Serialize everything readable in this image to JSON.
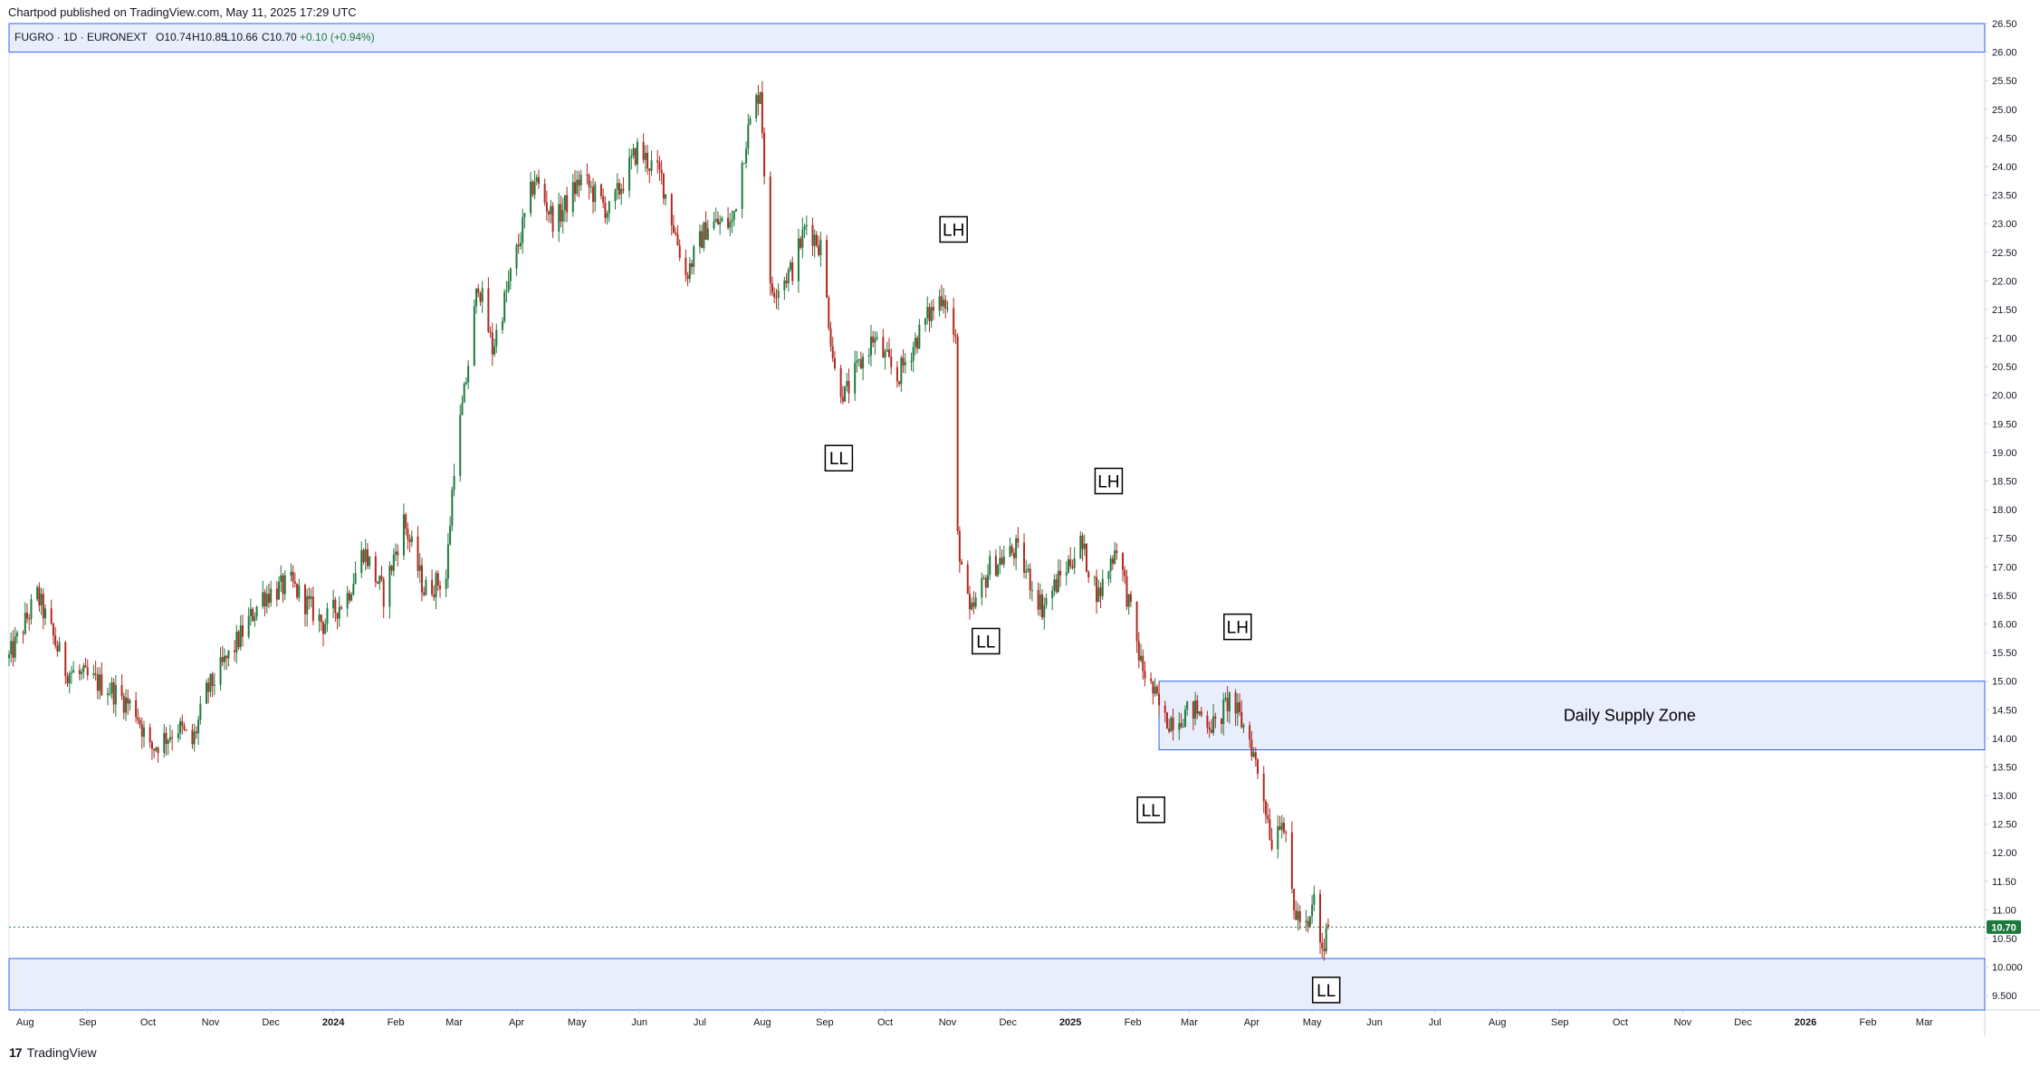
{
  "header": {
    "published_by": "Chartpod published on TradingView.com, May 11, 2025 17:29 UTC"
  },
  "footer": {
    "brand_logo": "17",
    "brand_name": "TradingView"
  },
  "colors": {
    "up": "#1e7a3c",
    "down": "#b0281f",
    "zone_fill": "#e9eefc",
    "zone_border": "#2962ff",
    "price_tag": "#1e7a3c",
    "axis_text": "#131722",
    "border": "#d1d4dc"
  },
  "chart_data": {
    "type": "candlestick",
    "symbol_legend": {
      "symbol": "FUGRO · 1D · EURONEXT",
      "open": "O10.74",
      "high": "H10.85",
      "low": "L10.66",
      "close": "C10.70",
      "change": "+0.10 (+0.94%)"
    },
    "y_axis": {
      "range": [
        9.25,
        26.5
      ],
      "tick_labels": [
        "26.50",
        "26.00",
        "25.50",
        "25.00",
        "24.50",
        "24.00",
        "23.50",
        "23.00",
        "22.50",
        "22.00",
        "21.50",
        "21.00",
        "20.50",
        "20.00",
        "19.50",
        "19.00",
        "18.50",
        "18.00",
        "17.50",
        "17.00",
        "16.50",
        "16.00",
        "15.50",
        "15.00",
        "14.50",
        "14.00",
        "13.50",
        "13.00",
        "12.50",
        "12.00",
        "11.50",
        "11.00",
        "10.50",
        "10.000",
        "9.500"
      ],
      "current_price_label": "10.70",
      "current_price": 10.7
    },
    "x_axis": {
      "range": [
        "2023-07-24",
        "2026-03-31"
      ],
      "tick_labels": [
        "Aug",
        "Sep",
        "Oct",
        "Nov",
        "Dec",
        "2024",
        "Feb",
        "Mar",
        "Apr",
        "May",
        "Jun",
        "Jul",
        "Aug",
        "Sep",
        "Oct",
        "Nov",
        "Dec",
        "2025",
        "Feb",
        "Mar",
        "Apr",
        "May",
        "Jun",
        "Jul",
        "Aug",
        "Sep",
        "Oct",
        "Nov",
        "Dec",
        "2026",
        "Feb",
        "Mar"
      ],
      "tick_dates": [
        "2023-08-01",
        "2023-09-01",
        "2023-10-01",
        "2023-11-01",
        "2023-12-01",
        "2024-01-01",
        "2024-02-01",
        "2024-03-01",
        "2024-04-01",
        "2024-05-01",
        "2024-06-01",
        "2024-07-01",
        "2024-08-01",
        "2024-09-01",
        "2024-10-01",
        "2024-11-01",
        "2024-12-01",
        "2025-01-01",
        "2025-02-01",
        "2025-03-01",
        "2025-04-01",
        "2025-05-01",
        "2025-06-01",
        "2025-07-01",
        "2025-08-01",
        "2025-09-01",
        "2025-10-01",
        "2025-11-01",
        "2025-12-01",
        "2026-01-01",
        "2026-02-01",
        "2026-03-01"
      ]
    },
    "price_path": [
      [
        "2023-07-24",
        15.4
      ],
      [
        "2023-08-07",
        16.5
      ],
      [
        "2023-08-21",
        15.2
      ],
      [
        "2023-09-11",
        14.9
      ],
      [
        "2023-09-25",
        14.5
      ],
      [
        "2023-10-02",
        13.8
      ],
      [
        "2023-10-16",
        14.2
      ],
      [
        "2023-10-23",
        13.9
      ],
      [
        "2023-10-30",
        14.8
      ],
      [
        "2023-11-13",
        15.6
      ],
      [
        "2023-11-27",
        16.5
      ],
      [
        "2023-12-11",
        16.7
      ],
      [
        "2023-12-27",
        16.0
      ],
      [
        "2024-01-08",
        16.5
      ],
      [
        "2024-01-16",
        17.3
      ],
      [
        "2024-01-26",
        16.5
      ],
      [
        "2024-02-05",
        17.8
      ],
      [
        "2024-02-15",
        16.6
      ],
      [
        "2024-02-26",
        16.8
      ],
      [
        "2024-03-01",
        18.8
      ],
      [
        "2024-03-06",
        20.0
      ],
      [
        "2024-03-13",
        22.0
      ],
      [
        "2024-03-20",
        20.8
      ],
      [
        "2024-04-01",
        22.5
      ],
      [
        "2024-04-10",
        23.8
      ],
      [
        "2024-04-20",
        23.0
      ],
      [
        "2024-05-03",
        23.8
      ],
      [
        "2024-05-17",
        23.2
      ],
      [
        "2024-05-31",
        24.3
      ],
      [
        "2024-06-12",
        23.8
      ],
      [
        "2024-06-24",
        22.1
      ],
      [
        "2024-07-05",
        23.0
      ],
      [
        "2024-07-17",
        23.0
      ],
      [
        "2024-07-24",
        24.5
      ],
      [
        "2024-07-31",
        25.4
      ],
      [
        "2024-08-05",
        21.8
      ],
      [
        "2024-08-16",
        22.2
      ],
      [
        "2024-08-23",
        23.0
      ],
      [
        "2024-08-30",
        22.6
      ],
      [
        "2024-09-06",
        20.4
      ],
      [
        "2024-09-11",
        20.0
      ],
      [
        "2024-09-25",
        21.0
      ],
      [
        "2024-10-07",
        20.3
      ],
      [
        "2024-10-21",
        21.3
      ],
      [
        "2024-10-30",
        21.8
      ],
      [
        "2024-11-05",
        20.9
      ],
      [
        "2024-11-06",
        17.5
      ],
      [
        "2024-11-12",
        16.1
      ],
      [
        "2024-11-22",
        17.0
      ],
      [
        "2024-12-05",
        17.3
      ],
      [
        "2024-12-18",
        16.3
      ],
      [
        "2025-01-06",
        17.4
      ],
      [
        "2025-01-15",
        16.5
      ],
      [
        "2025-01-24",
        17.4
      ],
      [
        "2025-02-05",
        15.3
      ],
      [
        "2025-02-17",
        14.3
      ],
      [
        "2025-03-04",
        14.5
      ],
      [
        "2025-03-14",
        14.2
      ],
      [
        "2025-03-21",
        14.7
      ],
      [
        "2025-03-31",
        14.0
      ],
      [
        "2025-04-07",
        13.0
      ],
      [
        "2025-04-11",
        12.2
      ],
      [
        "2025-04-16",
        12.7
      ],
      [
        "2025-04-22",
        11.0
      ],
      [
        "2025-04-29",
        10.6
      ],
      [
        "2025-05-02",
        11.2
      ],
      [
        "2025-05-06",
        10.2
      ],
      [
        "2025-05-09",
        10.7
      ]
    ],
    "zones": [
      {
        "name": "top-zone",
        "label": "",
        "from_date": "2023-07-24",
        "to_date": "2026-03-31",
        "y_low": 26.0,
        "y_high": 26.55
      },
      {
        "name": "daily-supply-zone",
        "label": "Daily Supply Zone",
        "from_date": "2025-02-14",
        "to_date": "2026-03-31",
        "y_low": 13.8,
        "y_high": 15.0
      },
      {
        "name": "bottom-zone",
        "label": "",
        "from_date": "2023-07-24",
        "to_date": "2026-03-31",
        "y_low": 9.2,
        "y_high": 10.15
      }
    ],
    "annotations": [
      {
        "label": "LH",
        "date": "2024-11-04",
        "price": 22.9
      },
      {
        "label": "LL",
        "date": "2024-09-08",
        "price": 18.9
      },
      {
        "label": "LH",
        "date": "2025-01-20",
        "price": 18.5
      },
      {
        "label": "LL",
        "date": "2024-11-20",
        "price": 15.7
      },
      {
        "label": "LH",
        "date": "2025-03-25",
        "price": 15.95
      },
      {
        "label": "LL",
        "date": "2025-02-10",
        "price": 12.75
      },
      {
        "label": "LL",
        "date": "2025-05-08",
        "price": 9.6
      }
    ]
  }
}
